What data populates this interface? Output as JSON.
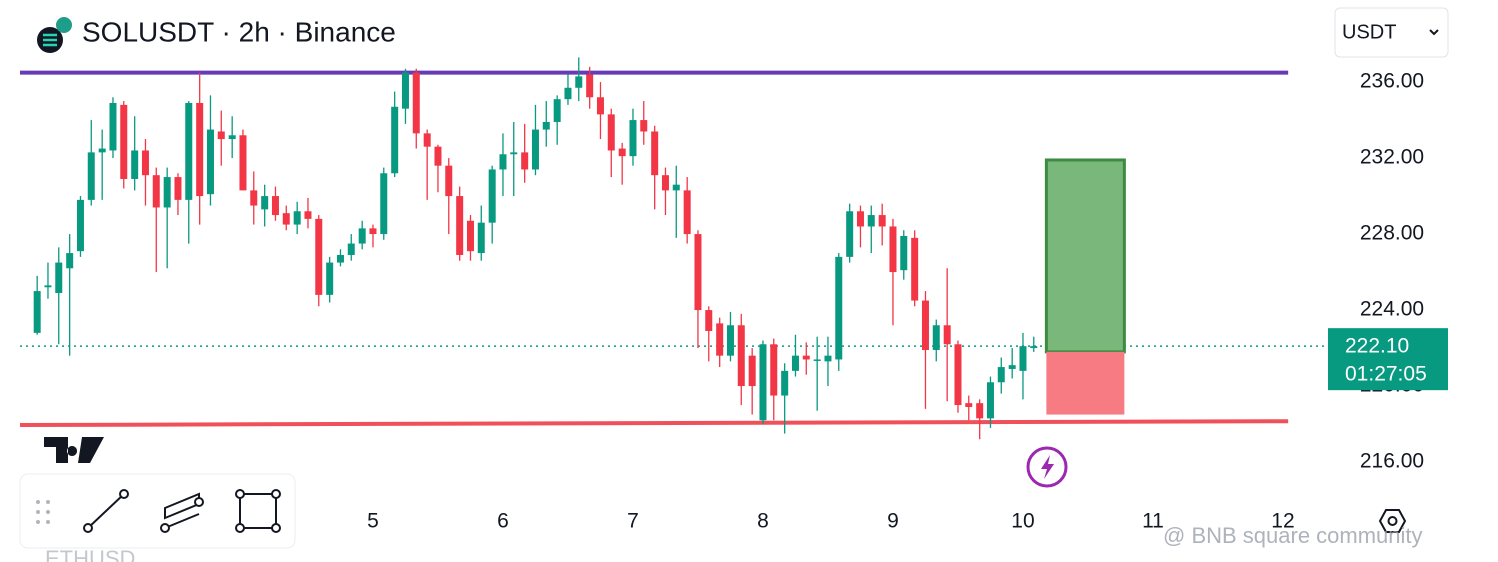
{
  "chart_data": {
    "type": "candlestick",
    "title": "SOLUSDT · 2h · Binance",
    "currency": "USDT",
    "watermark": "@ BNB square community",
    "bottom_symbol": "ETHUSD",
    "up_color": "#089981",
    "down_color": "#f23645",
    "xlim": [
      2.131,
      12.131
    ],
    "xticks": [
      5,
      6,
      7,
      8,
      9,
      10,
      11,
      12
    ],
    "ylim": [
      213.74,
      240.32
    ],
    "yticks": [
      {
        "value": 216,
        "label": "216.00"
      },
      {
        "value": 220,
        "label": "220.00"
      },
      {
        "value": 224,
        "label": "224.00"
      },
      {
        "value": 228,
        "label": "228.00"
      },
      {
        "value": 232,
        "label": "232.00"
      },
      {
        "value": 236,
        "label": "236.00"
      }
    ],
    "x": [
      2.417,
      2.5,
      2.583,
      2.667,
      2.75,
      2.833,
      2.917,
      3,
      3.083,
      3.167,
      3.25,
      3.333,
      3.417,
      3.5,
      3.583,
      3.667,
      3.75,
      3.833,
      3.917,
      4,
      4.083,
      4.167,
      4.25,
      4.333,
      4.417,
      4.5,
      4.583,
      4.667,
      4.75,
      4.833,
      4.917,
      5,
      5.083,
      5.167,
      5.25,
      5.333,
      5.417,
      5.5,
      5.583,
      5.667,
      5.75,
      5.833,
      5.917,
      6,
      6.083,
      6.167,
      6.25,
      6.333,
      6.417,
      6.5,
      6.583,
      6.667,
      6.75,
      6.833,
      6.917,
      7,
      7.083,
      7.167,
      7.25,
      7.333,
      7.417,
      7.5,
      7.583,
      7.667,
      7.75,
      7.833,
      7.917,
      8,
      8.083,
      8.167,
      8.25,
      8.333,
      8.417,
      8.5,
      8.583,
      8.667,
      8.75,
      8.833,
      8.917,
      9,
      9.083,
      9.167,
      9.25,
      9.333,
      9.417,
      9.5,
      9.583,
      9.667,
      9.75,
      9.833,
      9.917,
      10,
      10.083
    ],
    "open": [
      222.8,
      225.2,
      224.9,
      226.2,
      227.1,
      229.8,
      232.3,
      232.4,
      234.8,
      230.9,
      232.4,
      231.1,
      229.4,
      231.0,
      229.8,
      234.9,
      230.1,
      233.4,
      233.0,
      233.2,
      230.3,
      229.3,
      230.0,
      229.1,
      228.5,
      229.2,
      228.8,
      224.8,
      226.5,
      226.9,
      227.5,
      228.3,
      228.0,
      231.2,
      234.6,
      236.5,
      233.3,
      232.6,
      231.6,
      230.0,
      228.7,
      227.0,
      228.6,
      231.4,
      232.2,
      232.3,
      231.4,
      233.5,
      233.9,
      235.1,
      235.7,
      236.4,
      235.2,
      234.3,
      232.5,
      232.1,
      234.0,
      233.4,
      231.1,
      230.3,
      230.3,
      228.0,
      224.0,
      223.3,
      221.6,
      223.2,
      221.6,
      218.2,
      222.2,
      219.5,
      220.8,
      221.6,
      221.4,
      221.3,
      221.4,
      226.8,
      229.2,
      228.4,
      229.0,
      228.4,
      226.1,
      227.8,
      224.5,
      221.9,
      223.2,
      222.2,
      219.1,
      219.1,
      218.3,
      220.2,
      220.9,
      220.8,
      222.0
    ],
    "high": [
      225.8,
      226.5,
      227.3,
      228.0,
      230.0,
      234.0,
      233.5,
      235.2,
      235.0,
      234.2,
      233.0,
      231.5,
      231.5,
      231.2,
      235.0,
      236.5,
      235.3,
      234.5,
      234.2,
      233.5,
      231.3,
      230.6,
      230.5,
      229.5,
      229.7,
      229.9,
      229.0,
      226.8,
      227.2,
      228.0,
      228.7,
      228.5,
      231.5,
      235.5,
      236.7,
      236.7,
      233.5,
      232.7,
      232.0,
      230.5,
      229.0,
      229.5,
      231.6,
      233.3,
      233.9,
      233.8,
      234.8,
      235.0,
      235.3,
      236.4,
      237.3,
      236.8,
      236.0,
      234.6,
      232.8,
      234.6,
      235.0,
      233.7,
      231.5,
      231.6,
      231.0,
      228.2,
      224.2,
      223.6,
      223.9,
      223.8,
      222.0,
      222.4,
      222.5,
      221.2,
      222.7,
      222.3,
      222.6,
      222.6,
      227.0,
      229.6,
      229.5,
      229.5,
      229.6,
      228.8,
      228.2,
      228.2,
      225.0,
      223.5,
      226.2,
      222.4,
      219.5,
      219.3,
      220.5,
      221.5,
      222.0,
      222.8,
      222.6
    ],
    "low": [
      222.7,
      224.6,
      222.2,
      221.6,
      226.8,
      229.5,
      229.8,
      232.0,
      230.4,
      230.3,
      229.5,
      226.0,
      226.2,
      229.0,
      227.5,
      228.5,
      229.5,
      231.6,
      232.0,
      230.3,
      228.5,
      228.4,
      228.7,
      228.2,
      228.0,
      228.3,
      224.2,
      224.4,
      226.3,
      226.6,
      227.2,
      227.3,
      227.7,
      231.0,
      233.8,
      232.5,
      229.8,
      230.2,
      228.0,
      226.6,
      226.6,
      226.6,
      227.5,
      230.0,
      230.0,
      230.7,
      231.1,
      232.6,
      232.7,
      234.8,
      235.0,
      234.6,
      233.0,
      231.0,
      230.6,
      231.6,
      232.7,
      229.3,
      229.0,
      227.8,
      227.5,
      222.0,
      221.3,
      221.0,
      221.3,
      219.0,
      218.5,
      218.0,
      218.2,
      217.5,
      220.5,
      220.6,
      218.7,
      220.0,
      220.8,
      226.5,
      227.3,
      227.0,
      227.4,
      223.2,
      225.6,
      224.2,
      218.8,
      221.3,
      219.2,
      218.6,
      218.2,
      217.2,
      217.8,
      219.6,
      220.4,
      219.3,
      221.8
    ],
    "close": [
      225.0,
      225.3,
      226.5,
      227.0,
      229.8,
      232.3,
      232.5,
      234.9,
      230.9,
      232.4,
      231.1,
      229.4,
      231.0,
      229.8,
      234.9,
      230.0,
      233.5,
      233.0,
      233.2,
      230.3,
      229.5,
      230.0,
      229.0,
      228.5,
      229.2,
      228.8,
      224.8,
      226.5,
      226.9,
      227.5,
      228.3,
      228.0,
      231.2,
      234.7,
      236.5,
      233.3,
      232.6,
      231.6,
      230.0,
      226.9,
      227.1,
      228.6,
      231.4,
      232.2,
      232.3,
      231.4,
      233.5,
      233.9,
      235.1,
      235.7,
      236.3,
      235.2,
      234.3,
      232.4,
      232.1,
      234.0,
      233.4,
      231.1,
      230.3,
      230.6,
      228.0,
      224.0,
      222.9,
      221.6,
      223.2,
      220.0,
      220.0,
      222.2,
      219.5,
      220.8,
      221.6,
      221.4,
      221.4,
      221.6,
      226.8,
      229.2,
      228.4,
      229.0,
      228.4,
      226.0,
      227.9,
      224.5,
      221.9,
      223.2,
      222.2,
      219.0,
      218.9,
      218.3,
      220.2,
      221.0,
      221.1,
      222.1,
      222.1
    ],
    "lines": [
      {
        "color": "#673ab7",
        "x": [
          2.285,
          12.04
        ],
        "y": [
          236.5,
          236.5
        ]
      },
      {
        "color": "#f0505a",
        "x": [
          2.285,
          12.04
        ],
        "y": [
          217.95,
          218.15
        ]
      }
    ],
    "position": {
      "x": [
        10.18,
        10.78
      ],
      "target": 231.9,
      "entry": 221.8,
      "stop": 218.5,
      "profit_color": "#79b77b",
      "loss_color": "#f77b82"
    },
    "last_price": {
      "value": 222.1,
      "label": "222.10"
    },
    "countdown": "01:27:05"
  }
}
